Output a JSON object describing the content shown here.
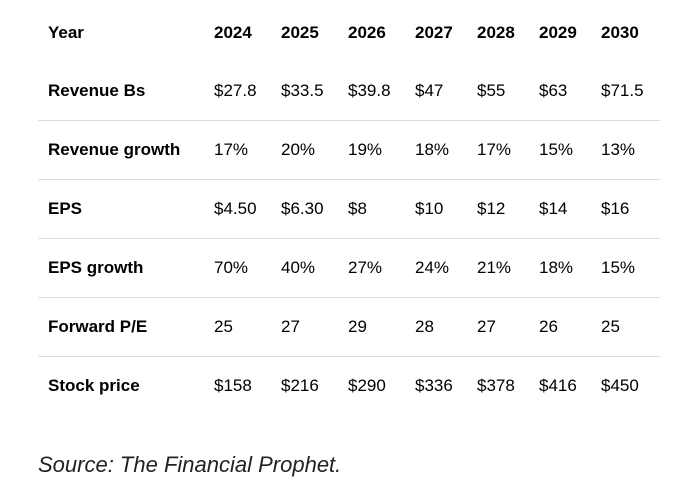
{
  "table": {
    "header": {
      "label": "Year",
      "years": [
        "2024",
        "2025",
        "2026",
        "2027",
        "2028",
        "2029",
        "2030"
      ]
    },
    "rows": [
      {
        "label": "Revenue Bs",
        "values": [
          "$27.8",
          "$33.5",
          "$39.8",
          "$47",
          "$55",
          "$63",
          "$71.5"
        ]
      },
      {
        "label": "Revenue growth",
        "values": [
          "17%",
          "20%",
          "19%",
          "18%",
          "17%",
          "15%",
          "13%"
        ]
      },
      {
        "label": "EPS",
        "values": [
          "$4.50",
          "$6.30",
          "$8",
          "$10",
          "$12",
          "$14",
          "$16"
        ]
      },
      {
        "label": "EPS growth",
        "values": [
          "70%",
          "40%",
          "27%",
          "24%",
          "21%",
          "18%",
          "15%"
        ]
      },
      {
        "label": "Forward P/E",
        "values": [
          "25",
          "27",
          "29",
          "28",
          "27",
          "26",
          "25"
        ]
      },
      {
        "label": "Stock price",
        "values": [
          "$158",
          "$216",
          "$290",
          "$336",
          "$378",
          "$416",
          "$450"
        ]
      }
    ]
  },
  "source": "Source: The Financial Prophet."
}
